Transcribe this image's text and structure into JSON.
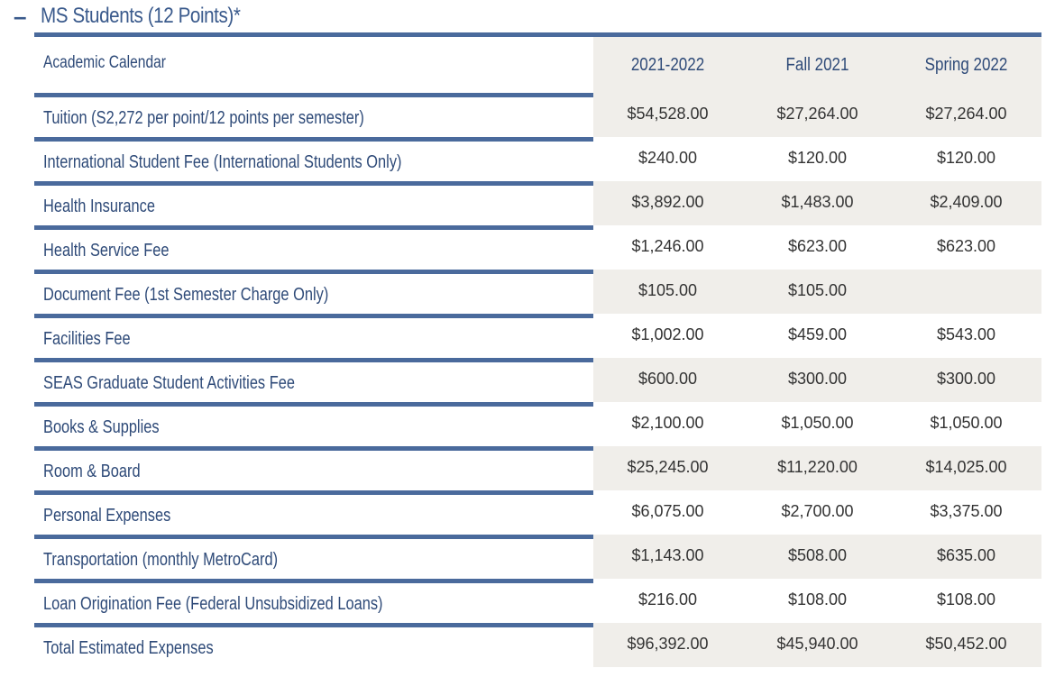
{
  "section": {
    "toggle": "–",
    "title": "MS Students (12 Points)*"
  },
  "table": {
    "headers": [
      "Academic Calendar",
      "2021-2022",
      "Fall 2021",
      "Spring 2022"
    ],
    "rows": [
      {
        "label": "Tuition (S2,272 per point/12 points per semester)",
        "values": [
          "$54,528.00",
          "$27,264.00",
          "$27,264.00"
        ]
      },
      {
        "label": "International Student Fee (International Students Only)",
        "values": [
          "$240.00",
          "$120.00",
          "$120.00"
        ]
      },
      {
        "label": "Health Insurance",
        "values": [
          "$3,892.00",
          "$1,483.00",
          "$2,409.00"
        ]
      },
      {
        "label": "Health Service Fee",
        "values": [
          "$1,246.00",
          "$623.00",
          "$623.00"
        ]
      },
      {
        "label": "Document Fee (1st Semester Charge Only)",
        "values": [
          "$105.00",
          "$105.00",
          ""
        ]
      },
      {
        "label": "Facilities Fee",
        "values": [
          "$1,002.00",
          "$459.00",
          "$543.00"
        ]
      },
      {
        "label": "SEAS Graduate Student Activities Fee",
        "values": [
          "$600.00",
          "$300.00",
          "$300.00"
        ]
      },
      {
        "label": "Books & Supplies",
        "values": [
          "$2,100.00",
          "$1,050.00",
          "$1,050.00"
        ]
      },
      {
        "label": "Room & Board",
        "values": [
          "$25,245.00",
          "$11,220.00",
          "$14,025.00"
        ]
      },
      {
        "label": "Personal Expenses",
        "values": [
          "$6,075.00",
          "$2,700.00",
          "$3,375.00"
        ]
      },
      {
        "label": "Transportation (monthly MetroCard)",
        "values": [
          "$1,143.00",
          "$508.00",
          "$635.00"
        ]
      },
      {
        "label": "Loan Origination Fee (Federal Unsubsidized Loans)",
        "values": [
          "$216.00",
          "$108.00",
          "$108.00"
        ]
      },
      {
        "label": "Total Estimated Expenses",
        "values": [
          "$96,392.00",
          "$45,940.00",
          "$50,452.00"
        ]
      }
    ]
  },
  "colors": {
    "accent": "#4a6a9c",
    "text": "#2e4a78",
    "shade": "#f0eeea"
  }
}
